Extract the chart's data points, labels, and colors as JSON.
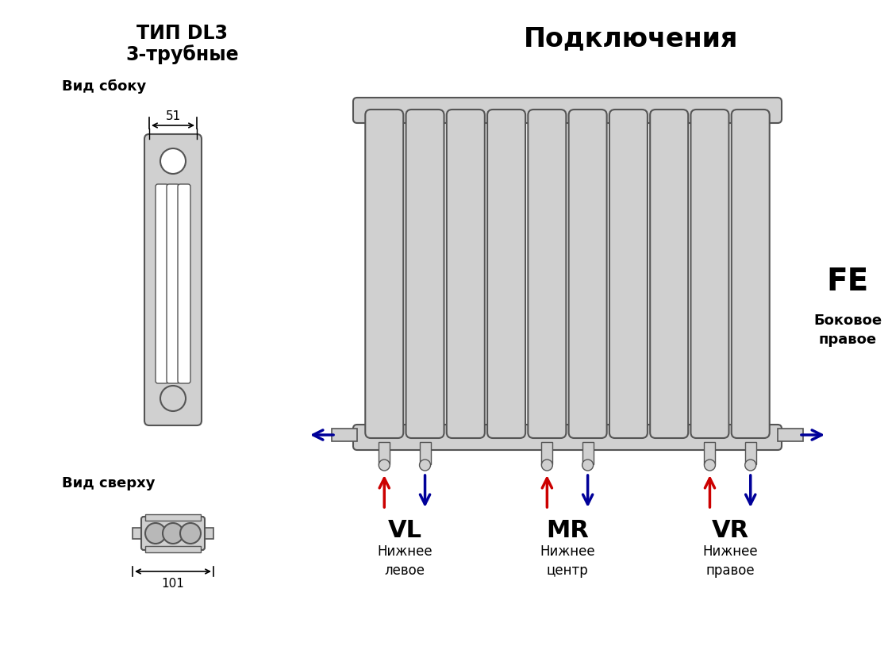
{
  "bg_color": "#ffffff",
  "title_left_line1": "ТИП DL3",
  "title_left_line2": "3-трубные",
  "title_right": "Подключения",
  "label_side_view": "Вид сбоку",
  "label_top_view": "Вид сверху",
  "dim_51": "51",
  "dim_101": "101",
  "radiator_color": "#d0d0d0",
  "radiator_outline": "#555555",
  "fe_label": "FE",
  "fe_sub": "Боковое\nправое",
  "vl_label": "VL",
  "vl_sub": "Нижнее\nлевое",
  "mr_label": "MR",
  "mr_sub": "Нижнее\nцентр",
  "vr_label": "VR",
  "vr_sub": "Нижнее\nправое",
  "arrow_red": "#cc0000",
  "arrow_blue": "#000099",
  "num_sections": 10
}
